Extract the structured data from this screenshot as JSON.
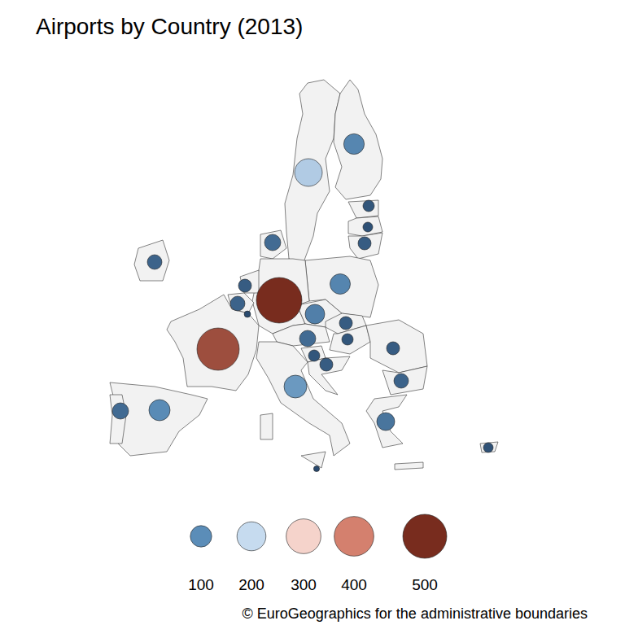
{
  "chart_data": {
    "type": "bubble",
    "title": "Airports by Country (2013)",
    "source": "© EuroGeographics for the administrative boundaries",
    "categories": [
      null,
      null,
      null,
      null,
      null,
      null,
      null,
      null,
      null,
      null,
      null,
      null,
      null,
      null,
      null,
      null,
      null,
      null,
      null,
      null,
      null,
      null,
      null,
      null,
      null,
      null,
      null
    ],
    "values": [
      90,
      180,
      20,
      13,
      29,
      51,
      39,
      88,
      29,
      39,
      3,
      540,
      460,
      80,
      51,
      29,
      20,
      20,
      29,
      29,
      39,
      115,
      97,
      51,
      65,
      13,
      2
    ],
    "size_ticks": [
      100,
      200,
      300,
      400,
      500
    ],
    "legend": "bottom",
    "tick_labels": false
  }
}
